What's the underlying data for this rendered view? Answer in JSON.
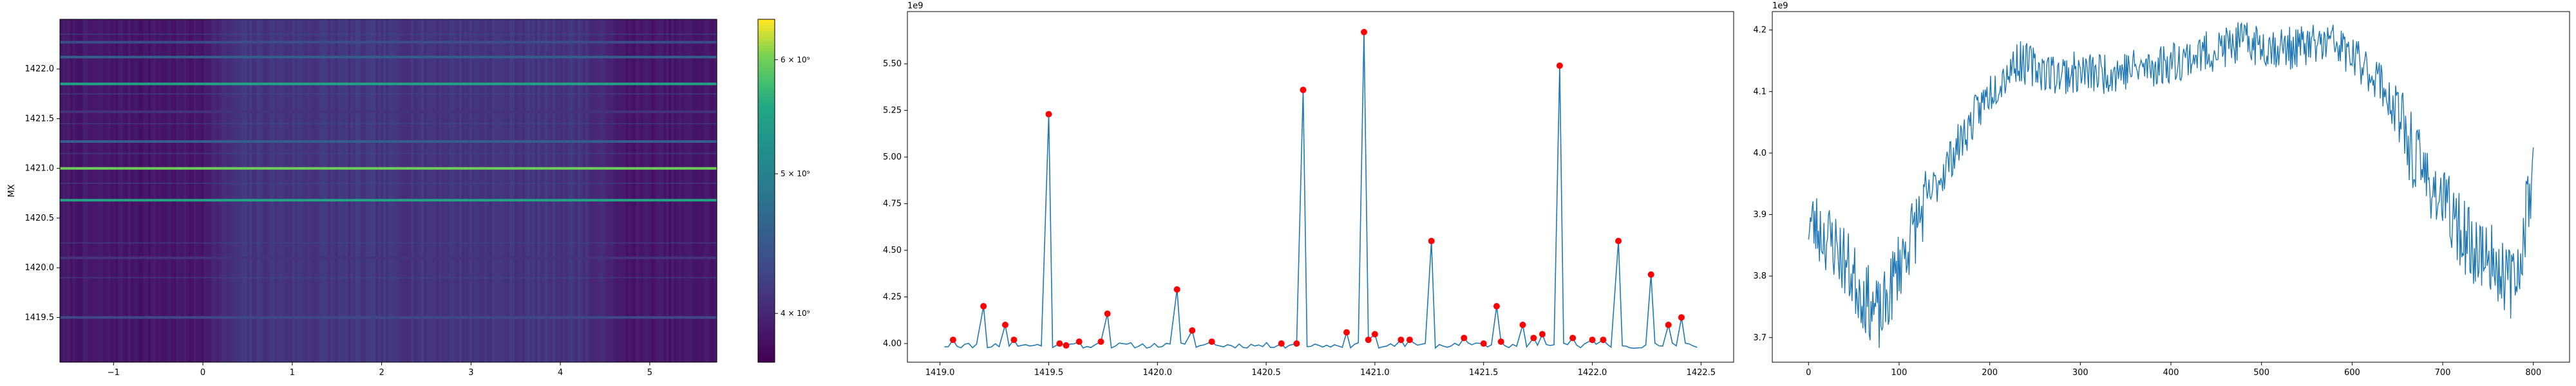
{
  "chart_data": [
    {
      "type": "heatmap",
      "title": "",
      "xlabel": "",
      "ylabel": "MX",
      "xlim": [
        -1.6,
        5.75
      ],
      "ylim": [
        1419.05,
        1422.5
      ],
      "x_ticks": [
        -1,
        0,
        1,
        2,
        3,
        4,
        5
      ],
      "y_ticks": [
        1419.5,
        1420.0,
        1420.5,
        1421.0,
        1421.5,
        1422.0
      ],
      "colormap": "viridis",
      "colorbar": {
        "scale": "log",
        "range": [
          3700000000,
          6400000000
        ],
        "ticks": [
          {
            "value": 4000000000,
            "label": "4 × 10⁹"
          },
          {
            "value": 5000000000,
            "label": "5 × 10⁹"
          },
          {
            "value": 6000000000,
            "label": "6 × 10⁹"
          }
        ]
      },
      "bright_rows": [
        {
          "y": 1421.0,
          "value": 6000000000
        },
        {
          "y": 1420.68,
          "value": 5500000000
        },
        {
          "y": 1421.85,
          "value": 5500000000
        },
        {
          "y": 1421.27,
          "value": 4550000000
        },
        {
          "y": 1422.12,
          "value": 4550000000
        },
        {
          "y": 1419.5,
          "value": 4300000000
        },
        {
          "y": 1420.1,
          "value": 4100000000
        },
        {
          "y": 1421.57,
          "value": 4100000000
        },
        {
          "y": 1422.27,
          "value": 4350000000
        }
      ]
    },
    {
      "type": "line",
      "title": "",
      "xlabel": "",
      "ylabel": "",
      "xlim": [
        1418.85,
        1422.65
      ],
      "ylim": [
        3.9,
        5.78
      ],
      "y_offset_label": "1e9",
      "x_ticks": [
        "1419.0",
        "1419.5",
        "1420.0",
        "1420.5",
        "1421.0",
        "1421.5",
        "1422.0",
        "1422.5"
      ],
      "y_ticks": [
        "4.00",
        "4.25",
        "4.50",
        "4.75",
        "5.00",
        "5.25",
        "5.50"
      ],
      "line_color": "#1f77b4",
      "marker_color": "#ff0000",
      "peaks": [
        {
          "x": 1419.06,
          "y": 4.02
        },
        {
          "x": 1419.2,
          "y": 4.2
        },
        {
          "x": 1419.3,
          "y": 4.1
        },
        {
          "x": 1419.34,
          "y": 4.02
        },
        {
          "x": 1419.5,
          "y": 5.23
        },
        {
          "x": 1419.55,
          "y": 4.0
        },
        {
          "x": 1419.58,
          "y": 3.99
        },
        {
          "x": 1419.64,
          "y": 4.01
        },
        {
          "x": 1419.74,
          "y": 4.01
        },
        {
          "x": 1419.77,
          "y": 4.16
        },
        {
          "x": 1420.09,
          "y": 4.29
        },
        {
          "x": 1420.16,
          "y": 4.07
        },
        {
          "x": 1420.25,
          "y": 4.01
        },
        {
          "x": 1420.57,
          "y": 4.0
        },
        {
          "x": 1420.64,
          "y": 4.0
        },
        {
          "x": 1420.67,
          "y": 5.36
        },
        {
          "x": 1420.87,
          "y": 4.06
        },
        {
          "x": 1420.95,
          "y": 5.67
        },
        {
          "x": 1420.97,
          "y": 4.02
        },
        {
          "x": 1421.0,
          "y": 4.05
        },
        {
          "x": 1421.12,
          "y": 4.02
        },
        {
          "x": 1421.16,
          "y": 4.02
        },
        {
          "x": 1421.26,
          "y": 4.55
        },
        {
          "x": 1421.41,
          "y": 4.03
        },
        {
          "x": 1421.5,
          "y": 4.0
        },
        {
          "x": 1421.56,
          "y": 4.2
        },
        {
          "x": 1421.58,
          "y": 4.01
        },
        {
          "x": 1421.68,
          "y": 4.1
        },
        {
          "x": 1421.73,
          "y": 4.03
        },
        {
          "x": 1421.77,
          "y": 4.05
        },
        {
          "x": 1421.85,
          "y": 5.49
        },
        {
          "x": 1421.91,
          "y": 4.03
        },
        {
          "x": 1422.0,
          "y": 4.02
        },
        {
          "x": 1422.05,
          "y": 4.02
        },
        {
          "x": 1422.12,
          "y": 4.55
        },
        {
          "x": 1422.27,
          "y": 4.37
        },
        {
          "x": 1422.35,
          "y": 4.1
        },
        {
          "x": 1422.41,
          "y": 4.14
        }
      ],
      "baseline": 3.99,
      "x_start": 1419.02,
      "x_end": 1422.5
    },
    {
      "type": "line",
      "title": "",
      "xlabel": "",
      "ylabel": "",
      "xlim": [
        -40,
        840
      ],
      "ylim": [
        3.66,
        4.23
      ],
      "y_offset_label": "1e9",
      "x_ticks": [
        0,
        100,
        200,
        300,
        400,
        500,
        600,
        700,
        800
      ],
      "y_ticks": [
        "3.7",
        "3.8",
        "3.9",
        "4.0",
        "4.1",
        "4.2"
      ],
      "line_color": "#1f77b4",
      "trend": [
        [
          0,
          3.89
        ],
        [
          30,
          3.85
        ],
        [
          60,
          3.77
        ],
        [
          80,
          3.73
        ],
        [
          100,
          3.82
        ],
        [
          130,
          3.92
        ],
        [
          160,
          4.0
        ],
        [
          200,
          4.1
        ],
        [
          230,
          4.15
        ],
        [
          270,
          4.13
        ],
        [
          320,
          4.13
        ],
        [
          380,
          4.14
        ],
        [
          430,
          4.16
        ],
        [
          480,
          4.18
        ],
        [
          530,
          4.17
        ],
        [
          580,
          4.18
        ],
        [
          630,
          4.12
        ],
        [
          650,
          4.06
        ],
        [
          670,
          3.99
        ],
        [
          700,
          3.92
        ],
        [
          730,
          3.85
        ],
        [
          760,
          3.82
        ],
        [
          780,
          3.78
        ],
        [
          800,
          3.98
        ]
      ],
      "n_points": 800
    }
  ]
}
